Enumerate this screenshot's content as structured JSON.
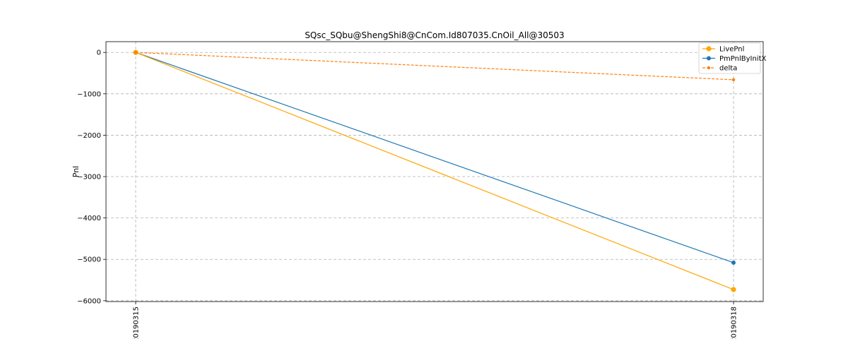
{
  "chart_data": {
    "type": "line",
    "title": "SQsc_SQbu@ShengShi8@CnCom.Id807035.CnOil_All@30503",
    "xlabel": "",
    "ylabel": "Pnl",
    "categories": [
      "20190315",
      "20190318"
    ],
    "ylim": [
      -6020,
      260
    ],
    "yticks": [
      0,
      -1000,
      -2000,
      -3000,
      -4000,
      -5000,
      -6000
    ],
    "ytick_labels": [
      "0",
      "−1000",
      "−2000",
      "−3000",
      "−4000",
      "−5000",
      "−6000"
    ],
    "grid": true,
    "legend_position": "top-right",
    "series": [
      {
        "name": "LivePnl",
        "values": [
          0,
          -5730
        ],
        "color": "#ffa500",
        "dashed": false,
        "marker": "large-circle"
      },
      {
        "name": "PmPnlByInitX",
        "values": [
          0,
          -5080
        ],
        "color": "#1f77b4",
        "dashed": false,
        "marker": "circle"
      },
      {
        "name": "delta",
        "values": [
          0,
          -660
        ],
        "color": "#ff7f0e",
        "dashed": true,
        "marker": "small-circle"
      }
    ]
  }
}
